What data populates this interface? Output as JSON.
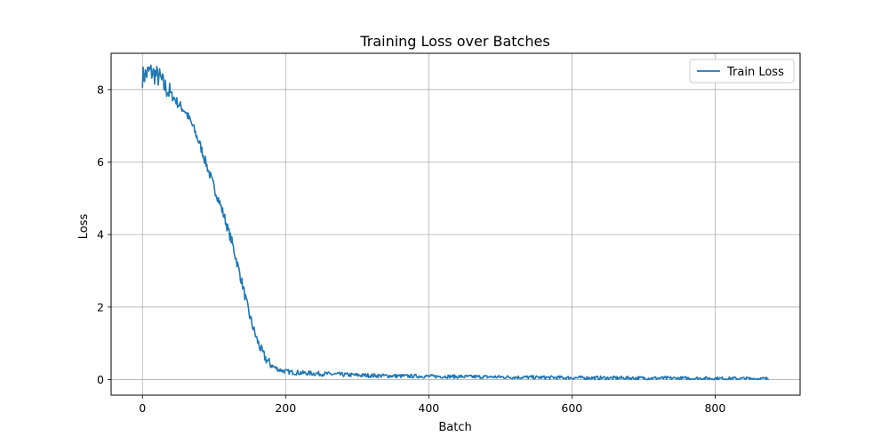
{
  "chart_data": {
    "type": "line",
    "title": "Training Loss over Batches",
    "xlabel": "Batch",
    "ylabel": "Loss",
    "xlim": [
      -43.75,
      918.75
    ],
    "ylim": [
      -0.43,
      9.0
    ],
    "grid": true,
    "legend_position": "top-right",
    "x_ticks": [
      0,
      200,
      400,
      600,
      800
    ],
    "y_ticks": [
      0,
      2,
      4,
      6,
      8
    ],
    "series": [
      {
        "name": "Train Loss",
        "color": "#1f77b4",
        "x_range": [
          0,
          875
        ],
        "points": [
          [
            0,
            8.35
          ],
          [
            5,
            8.42
          ],
          [
            10,
            8.5
          ],
          [
            15,
            8.45
          ],
          [
            20,
            8.38
          ],
          [
            25,
            8.3
          ],
          [
            30,
            8.1
          ],
          [
            35,
            8.0
          ],
          [
            40,
            7.85
          ],
          [
            45,
            7.75
          ],
          [
            50,
            7.6
          ],
          [
            55,
            7.5
          ],
          [
            60,
            7.4
          ],
          [
            65,
            7.2
          ],
          [
            70,
            7.0
          ],
          [
            75,
            6.75
          ],
          [
            80,
            6.5
          ],
          [
            85,
            6.2
          ],
          [
            90,
            5.9
          ],
          [
            95,
            5.6
          ],
          [
            100,
            5.3
          ],
          [
            105,
            5.05
          ],
          [
            110,
            4.75
          ],
          [
            115,
            4.45
          ],
          [
            120,
            4.1
          ],
          [
            125,
            3.8
          ],
          [
            130,
            3.4
          ],
          [
            135,
            3.0
          ],
          [
            140,
            2.6
          ],
          [
            145,
            2.15
          ],
          [
            150,
            1.75
          ],
          [
            155,
            1.4
          ],
          [
            160,
            1.1
          ],
          [
            165,
            0.85
          ],
          [
            170,
            0.65
          ],
          [
            175,
            0.5
          ],
          [
            180,
            0.4
          ],
          [
            185,
            0.33
          ],
          [
            190,
            0.28
          ],
          [
            200,
            0.22
          ],
          [
            210,
            0.2
          ],
          [
            225,
            0.18
          ],
          [
            250,
            0.16
          ],
          [
            275,
            0.14
          ],
          [
            300,
            0.12
          ],
          [
            350,
            0.1
          ],
          [
            400,
            0.09
          ],
          [
            450,
            0.08
          ],
          [
            500,
            0.07
          ],
          [
            550,
            0.06
          ],
          [
            600,
            0.05
          ],
          [
            650,
            0.045
          ],
          [
            700,
            0.04
          ],
          [
            750,
            0.035
          ],
          [
            800,
            0.03
          ],
          [
            850,
            0.025
          ],
          [
            875,
            0.02
          ]
        ]
      }
    ]
  }
}
